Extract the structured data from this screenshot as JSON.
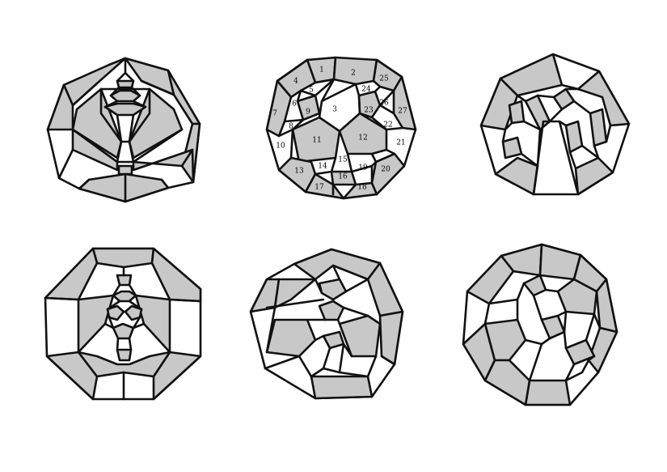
{
  "figures": [
    {
      "id": "fig-a",
      "fill": "#c8c8c8"
    },
    {
      "id": "fig-b",
      "fill": "#c8c8c8",
      "face_labels": [
        "1",
        "2",
        "3",
        "4",
        "5",
        "6",
        "7",
        "8",
        "9",
        "10",
        "11",
        "12",
        "13",
        "14",
        "15",
        "16",
        "17",
        "18",
        "19",
        "20",
        "21",
        "22",
        "23",
        "24",
        "25",
        "26",
        "27"
      ]
    },
    {
      "id": "fig-c",
      "fill": "#c8c8c8"
    },
    {
      "id": "fig-d",
      "fill": "#c8c8c8"
    },
    {
      "id": "fig-e",
      "fill": "#c8c8c8"
    },
    {
      "id": "fig-f",
      "fill": "#c8c8c8"
    }
  ]
}
